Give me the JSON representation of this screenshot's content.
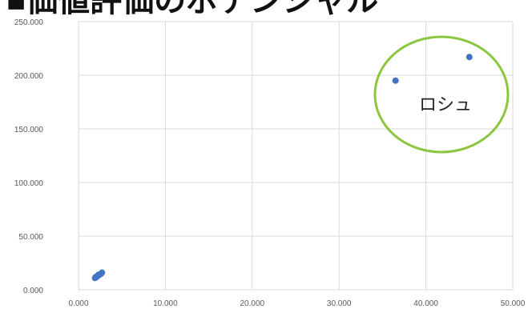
{
  "title_fragment": "■価値評価のポテンシャル",
  "chart_data": {
    "type": "scatter",
    "title": "",
    "xlabel": "",
    "ylabel": "",
    "xlim": [
      0,
      50
    ],
    "ylim": [
      0,
      250
    ],
    "x_ticks": [
      0,
      10,
      20,
      30,
      40,
      50
    ],
    "y_ticks": [
      0,
      50,
      100,
      150,
      200,
      250
    ],
    "x_tick_labels": [
      "0.000",
      "10.000",
      "20.000",
      "30.000",
      "40.000",
      "50.000"
    ],
    "y_tick_labels": [
      "0.000",
      "50.000",
      "100.000",
      "150.000",
      "200.000",
      "250.000"
    ],
    "grid": true,
    "point_color": "#4472c4",
    "series": [
      {
        "x": [
          1.9,
          2.0,
          2.1,
          2.2,
          2.3,
          2.4,
          2.6,
          2.7,
          36.5,
          45.0
        ],
        "y": [
          11,
          12,
          12,
          13,
          14,
          14,
          15,
          16,
          195,
          217
        ]
      }
    ],
    "annotation": {
      "text": "ロシュ",
      "shape": "ellipse",
      "color": "#8cc63f"
    }
  }
}
